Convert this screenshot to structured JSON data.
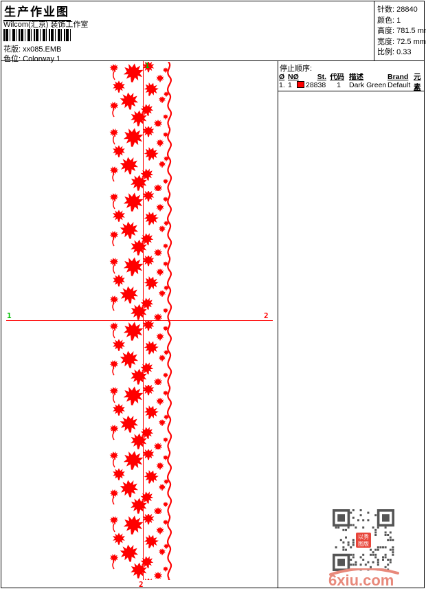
{
  "header": {
    "title": "生产作业图",
    "subtitle": "Wilcom(汇京) 装饰工作室",
    "pattern_label": "花版:",
    "pattern_value": "xx085.EMB",
    "colorway_label": "色位:",
    "colorway_value": "Colorway 1"
  },
  "stats": {
    "stitches_label": "针数:",
    "stitches_value": "28840",
    "colors_label": "颜色:",
    "colors_value": "1",
    "height_label": "高度:",
    "height_value": "781.5 mm",
    "width_label": "宽度:",
    "width_value": "72.5 mm",
    "scale_label": "比例:",
    "scale_value": "0.33"
  },
  "stop_table": {
    "title": "停止顺序:",
    "columns": [
      "Ø",
      "NØ",
      "St.",
      "代码",
      "描述",
      "Brand",
      "元素"
    ],
    "row": {
      "seq": "1.",
      "needle": "1",
      "swatch_color": "#ff0000",
      "stitches": "28838",
      "code": "1",
      "description": "Dark Green",
      "brand": "Default",
      "element": ""
    }
  },
  "design": {
    "thread_color": "#ff0000",
    "start_marker": "1",
    "end_marker": "2",
    "marker_start_color": "#00c000",
    "marker_end_color": "#ff0000"
  },
  "watermark": {
    "site": "6xiu.com",
    "seal_line1": "以秀",
    "seal_line2": "图版",
    "logo_color": "#e8897b"
  }
}
